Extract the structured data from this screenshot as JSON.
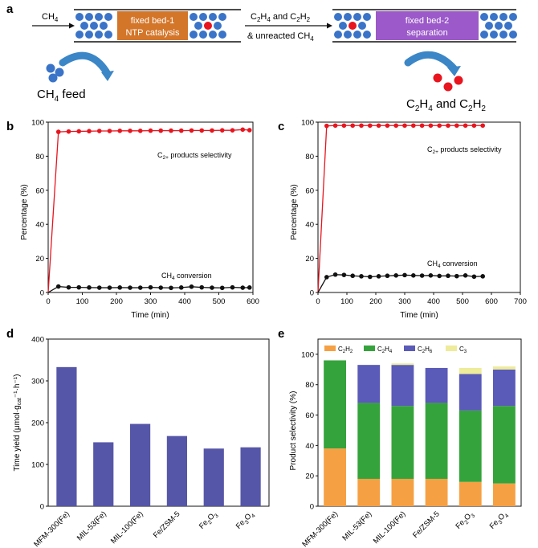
{
  "panels": {
    "a": "a",
    "b": "b",
    "c": "c",
    "d": "d",
    "e": "e"
  },
  "scheme": {
    "ch4_label": "CH",
    "ch4_sub": "4",
    "bed1_line1": "fixed bed-1",
    "bed1_line2": "NTP catalysis",
    "mid_line1_a": "C",
    "mid_line1_b": "2",
    "mid_line1_c": "H",
    "mid_line1_d": "4",
    "mid_line1_e": " and C",
    "mid_line1_f": "2",
    "mid_line1_g": "H",
    "mid_line1_h": "2",
    "mid_line2_a": "& unreacted CH",
    "mid_line2_b": "4",
    "bed2_line1": "fixed bed-2",
    "bed2_line2": "separation",
    "feed_a": "CH",
    "feed_b": "4",
    "feed_c": " feed",
    "prod_a": "C",
    "prod_b": "2",
    "prod_c": "H",
    "prod_d": "4",
    "prod_e": " and C",
    "prod_f": "2",
    "prod_g": "H",
    "prod_h": "2",
    "colors": {
      "bed1": "#d4762a",
      "bed2": "#9b59c9",
      "molecule": "#3a74c8",
      "product": "#e8141e",
      "arrow": "#3b86c6"
    }
  },
  "chart_data": [
    {
      "id": "b",
      "type": "line",
      "xlabel": "Time (min)",
      "ylabel": "Percentage (%)",
      "xlim": [
        0,
        600
      ],
      "ylim": [
        0,
        100
      ],
      "xticks": [
        0,
        100,
        200,
        300,
        400,
        500,
        600
      ],
      "yticks": [
        0,
        20,
        40,
        60,
        80,
        100
      ],
      "annotations": [
        {
          "text_a": "C",
          "text_b": "2+",
          "text_c": " products selectivity"
        },
        {
          "text_a": "CH",
          "text_b": "4",
          "text_c": " conversion"
        }
      ],
      "series": [
        {
          "name": "C2+ products selectivity",
          "color": "#e8141e",
          "x": [
            0,
            30,
            60,
            90,
            120,
            150,
            180,
            210,
            240,
            270,
            300,
            330,
            360,
            390,
            420,
            450,
            480,
            510,
            540,
            570,
            590
          ],
          "y": [
            0,
            94.3,
            94.5,
            94.6,
            94.7,
            94.8,
            94.8,
            94.9,
            94.9,
            94.9,
            95.0,
            95.0,
            95.0,
            95.0,
            95.1,
            95.1,
            95.1,
            95.2,
            95.2,
            95.6,
            95.3
          ]
        },
        {
          "name": "CH4 conversion",
          "color": "#111111",
          "x": [
            0,
            30,
            60,
            90,
            120,
            150,
            180,
            210,
            240,
            270,
            300,
            330,
            360,
            390,
            420,
            450,
            480,
            510,
            540,
            570,
            590
          ],
          "y": [
            0,
            3.5,
            3.0,
            3.0,
            2.9,
            2.8,
            2.8,
            2.9,
            2.8,
            2.8,
            3.0,
            2.8,
            2.7,
            2.9,
            3.4,
            3.0,
            2.8,
            2.7,
            3.0,
            2.8,
            2.9
          ]
        }
      ]
    },
    {
      "id": "c",
      "type": "line",
      "xlabel": "Time (min)",
      "ylabel": "Percentage (%)",
      "xlim": [
        0,
        700
      ],
      "ylim": [
        0,
        100
      ],
      "xticks": [
        0,
        100,
        200,
        300,
        400,
        500,
        600,
        700
      ],
      "yticks": [
        0,
        20,
        40,
        60,
        80,
        100
      ],
      "annotations": [
        {
          "text_a": "C",
          "text_b": "2+",
          "text_c": " products selectivity"
        },
        {
          "text_a": "CH",
          "text_b": "4",
          "text_c": " conversion"
        }
      ],
      "series": [
        {
          "name": "C2+ products selectivity",
          "color": "#e8141e",
          "x": [
            0,
            30,
            60,
            90,
            120,
            150,
            180,
            210,
            240,
            270,
            300,
            330,
            360,
            390,
            420,
            450,
            480,
            510,
            540,
            570
          ],
          "y": [
            0,
            97.8,
            98.0,
            98.0,
            98.0,
            98.0,
            98.0,
            98.0,
            98.0,
            98.0,
            98.0,
            98.0,
            98.0,
            98.0,
            98.0,
            98.0,
            98.0,
            98.0,
            98.0,
            98.0
          ]
        },
        {
          "name": "CH4 conversion",
          "color": "#111111",
          "x": [
            0,
            30,
            60,
            90,
            120,
            150,
            180,
            210,
            240,
            270,
            300,
            330,
            360,
            390,
            420,
            450,
            480,
            510,
            540,
            570
          ],
          "y": [
            0,
            9.0,
            10.5,
            10.3,
            9.8,
            9.5,
            9.2,
            9.5,
            9.8,
            10.0,
            10.2,
            10.0,
            9.9,
            10.0,
            9.7,
            9.8,
            9.6,
            10.0,
            9.3,
            9.5
          ]
        }
      ]
    },
    {
      "id": "d",
      "type": "bar",
      "ylabel": "Time yield (μmol·g",
      "ylabel_sub": "cat",
      "ylabel_end": "⁻¹·h⁻¹)",
      "ylim": [
        0,
        400
      ],
      "yticks": [
        0,
        100,
        200,
        300,
        400
      ],
      "color": "#5656a8",
      "categories": [
        "MFM-300(Fe)",
        "MIL-53(Fe)",
        "MIL-100(Fe)",
        "Fe/ZSM-5",
        "Fe2O3",
        "Fe3O4"
      ],
      "category_parts": [
        [
          "MFM-300(Fe)",
          "",
          "",
          ""
        ],
        [
          "MIL-53(Fe)",
          "",
          "",
          ""
        ],
        [
          "MIL-100(Fe)",
          "",
          "",
          ""
        ],
        [
          "Fe/ZSM-5",
          "",
          "",
          ""
        ],
        [
          "Fe",
          "2",
          "O",
          "3"
        ],
        [
          "Fe",
          "3",
          "O",
          "4"
        ]
      ],
      "values": [
        333,
        153,
        197,
        168,
        138,
        141
      ]
    },
    {
      "id": "e",
      "type": "bar",
      "stacked": true,
      "ylabel": "Product selectivity (%)",
      "ylim": [
        0,
        110
      ],
      "yticks": [
        0,
        20,
        40,
        60,
        80,
        100
      ],
      "categories": [
        "MFM-300(Fe)",
        "MIL-53(Fe)",
        "MIL-100(Fe)",
        "Fe/ZSM-5",
        "Fe2O3",
        "Fe3O4"
      ],
      "category_parts": [
        [
          "MFM-300(Fe)",
          "",
          "",
          ""
        ],
        [
          "MIL-53(Fe)",
          "",
          "",
          ""
        ],
        [
          "MIL-100(Fe)",
          "",
          "",
          ""
        ],
        [
          "Fe/ZSM-5",
          "",
          "",
          ""
        ],
        [
          "Fe",
          "2",
          "O",
          "3"
        ],
        [
          "Fe",
          "3",
          "O",
          "4"
        ]
      ],
      "series": [
        {
          "name": "C2H2",
          "parts": [
            "C",
            "2",
            "H",
            "2"
          ],
          "color": "#f6a044",
          "values": [
            38,
            18,
            18,
            18,
            16,
            15
          ]
        },
        {
          "name": "C2H4",
          "parts": [
            "C",
            "2",
            "H",
            "4"
          ],
          "color": "#35a33b",
          "values": [
            58,
            50,
            48,
            50,
            47,
            51
          ]
        },
        {
          "name": "C2H6",
          "parts": [
            "C",
            "2",
            "H",
            "6"
          ],
          "color": "#5a5ab8",
          "values": [
            0,
            25,
            27,
            23,
            24,
            24
          ]
        },
        {
          "name": "C3",
          "parts": [
            "C",
            "3",
            "",
            ""
          ],
          "color": "#eeeb9a",
          "values": [
            0,
            0,
            1,
            0,
            4,
            2
          ]
        }
      ]
    }
  ]
}
